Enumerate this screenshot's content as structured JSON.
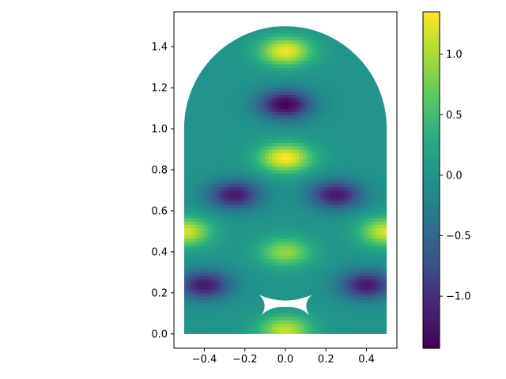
{
  "chart_data": {
    "type": "heatmap",
    "title": "",
    "xlabel": "",
    "ylabel": "",
    "xlim": [
      -0.55,
      0.55
    ],
    "ylim": [
      -0.07,
      1.57
    ],
    "x_ticks": [
      -0.4,
      -0.2,
      0.0,
      0.2,
      0.4
    ],
    "x_tick_labels": [
      "−0.4",
      "−0.2",
      "0.0",
      "0.2",
      "0.4"
    ],
    "y_ticks": [
      0.0,
      0.2,
      0.4,
      0.6,
      0.8,
      1.0,
      1.2,
      1.4
    ],
    "y_tick_labels": [
      "0.0",
      "0.2",
      "0.4",
      "0.6",
      "0.8",
      "1.0",
      "1.2",
      "1.4"
    ],
    "colormap": "viridis",
    "colorbar": {
      "min": -1.43,
      "max": 1.35,
      "ticks": [
        -1.0,
        -0.5,
        0.0,
        0.5,
        1.0
      ],
      "tick_labels": [
        "−1.0",
        "−0.5",
        "0.0",
        "0.5",
        "1.0"
      ]
    },
    "domain": {
      "shape": "rectangle with semicircular cap",
      "x_range": [
        -0.5,
        0.5
      ],
      "y_rect_range": [
        0.0,
        1.0
      ],
      "cap_center": [
        0.0,
        1.0
      ],
      "cap_radius": 0.5,
      "hole_region": {
        "x_range": [
          -0.13,
          0.13
        ],
        "y_range": [
          0.09,
          0.19
        ]
      }
    },
    "field_features": [
      {
        "x": 0.0,
        "y": 1.38,
        "value": 1.3
      },
      {
        "x": 0.0,
        "y": 1.12,
        "value": -1.4
      },
      {
        "x": 0.0,
        "y": 0.86,
        "value": 1.35
      },
      {
        "x": -0.25,
        "y": 0.68,
        "value": -1.2
      },
      {
        "x": 0.25,
        "y": 0.68,
        "value": -1.2
      },
      {
        "x": -0.5,
        "y": 0.5,
        "value": 1.2
      },
      {
        "x": 0.5,
        "y": 0.5,
        "value": 1.2
      },
      {
        "x": 0.0,
        "y": 0.4,
        "value": 0.9
      },
      {
        "x": -0.4,
        "y": 0.24,
        "value": -1.2
      },
      {
        "x": 0.4,
        "y": 0.24,
        "value": -1.2
      },
      {
        "x": 0.0,
        "y": 0.02,
        "value": 1.1
      }
    ]
  }
}
